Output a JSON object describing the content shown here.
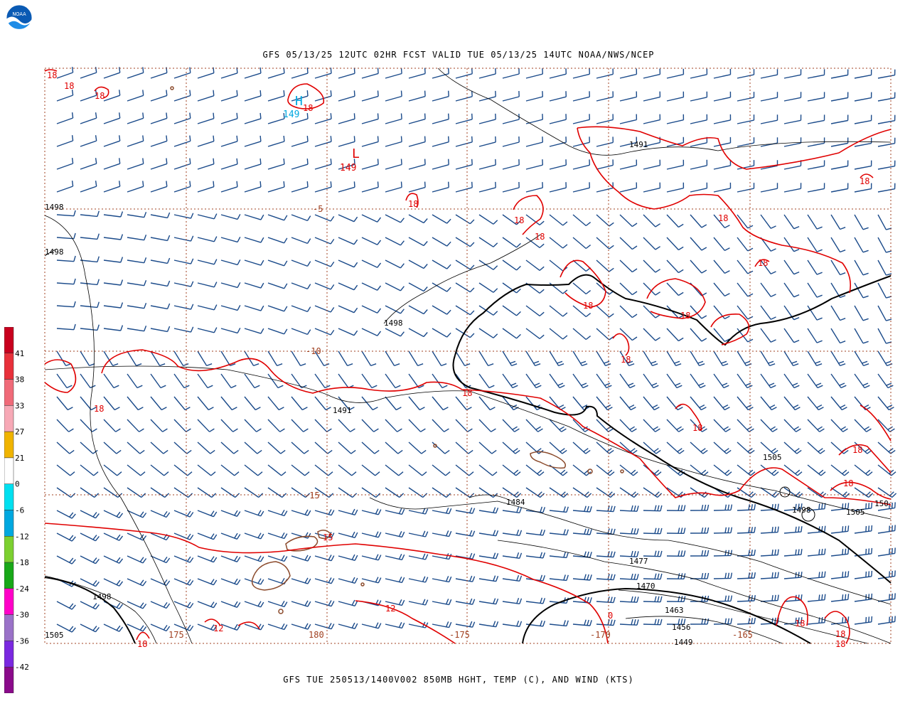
{
  "top_title": "GFS 05/13/25 12UTC 02HR FCST VALID TUE 05/13/25 14UTC NOAA/NWS/NCEP",
  "bottom_title": "GFS TUE 250513/1400V002 850MB HGHT, TEMP (C), AND WIND (KTS)",
  "logo_text": "NOAA",
  "colorbar": {
    "labels": [
      "41",
      "38",
      "33",
      "27",
      "21",
      "0",
      "-6",
      "-12",
      "-18",
      "-24",
      "-30",
      "-36",
      "-42"
    ],
    "colors": [
      "#c8001e",
      "#e8303a",
      "#f06a78",
      "#f7a9b6",
      "#f0b400",
      "#ffffff",
      "#00e0f0",
      "#00a8e0",
      "#7cd030",
      "#18a818",
      "#ff00c8",
      "#9a72c8",
      "#7a28e0",
      "#8a0a8a"
    ]
  },
  "grid_labels": {
    "lat": [
      "-5",
      "-10",
      "-15"
    ],
    "lon": [
      "175",
      "180",
      "-175",
      "-170",
      "-165"
    ]
  },
  "highs_lows": [
    {
      "symbol": "H",
      "value": "149",
      "color": "#00a8e0"
    },
    {
      "symbol": "L",
      "value": "149",
      "color": "#e00000"
    }
  ],
  "height_labels": [
    "1498",
    "1498",
    "1498",
    "1491",
    "1491",
    "1484",
    "1477",
    "1470",
    "1463",
    "1456",
    "1449",
    "1498",
    "1505",
    "1505",
    "1505",
    "1498",
    "150"
  ],
  "temp_labels": [
    "18",
    "18",
    "18",
    "18",
    "18",
    "18",
    "18",
    "18",
    "18",
    "18",
    "18",
    "18",
    "18",
    "18",
    "18",
    "18",
    "18",
    "18",
    "18",
    "15",
    "12",
    "12",
    "0",
    "18",
    "18",
    "18"
  ],
  "colors": {
    "height_contour": "#000000",
    "temp_contour": "#e00000",
    "wind_barb": "#1a4a8a",
    "coastline": "#8b4a2b",
    "grid": "#a04020"
  }
}
